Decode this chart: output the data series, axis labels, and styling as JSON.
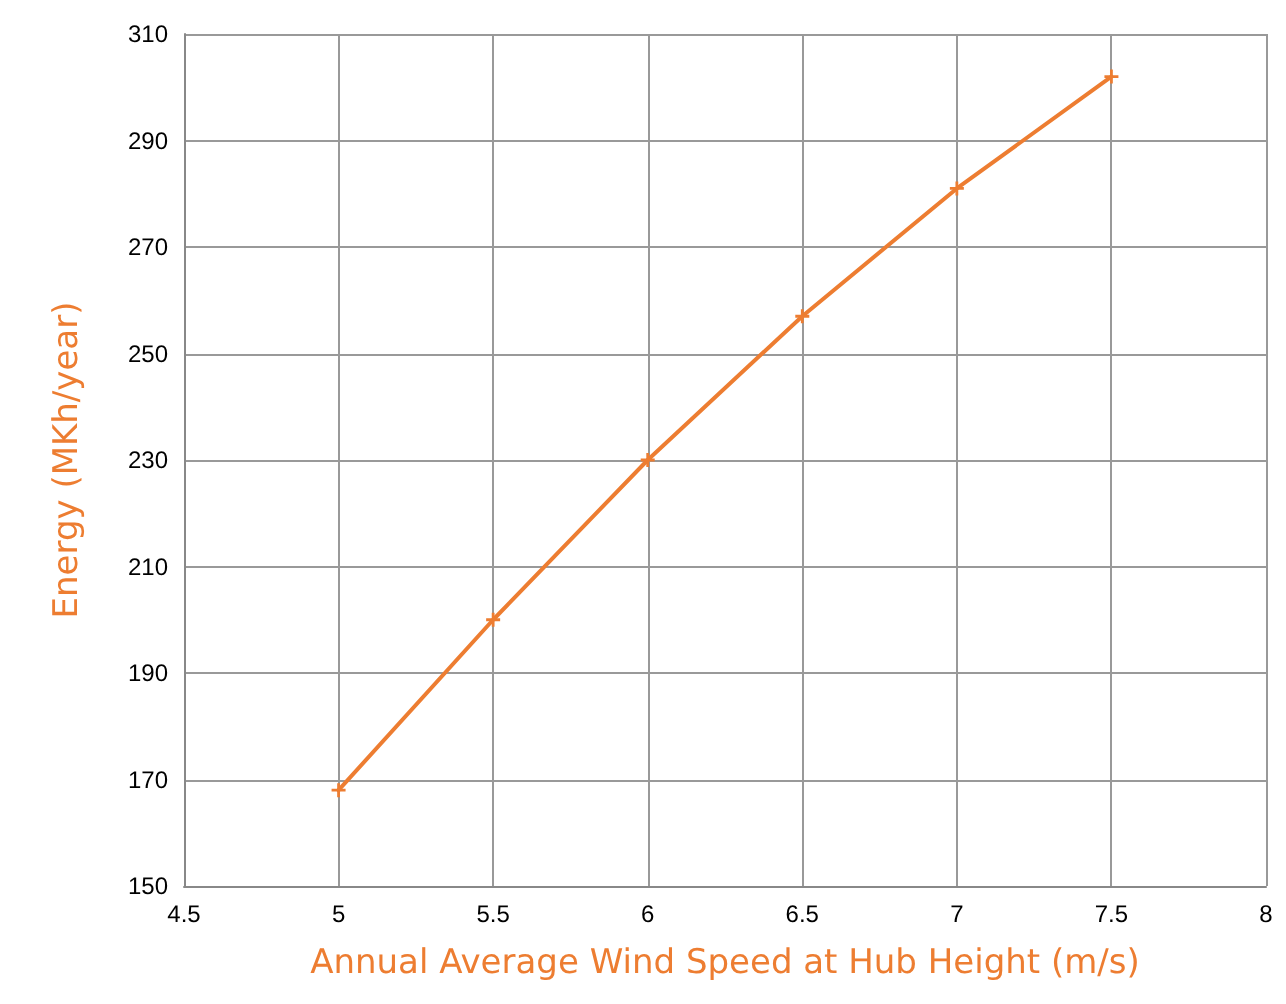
{
  "chart_data": {
    "type": "line",
    "xlabel": "Annual Average Wind Speed at Hub Height (m/s)",
    "ylabel": "Energy (MKh/year)",
    "x": [
      5,
      5.5,
      6,
      6.5,
      7,
      7.5
    ],
    "series": [
      {
        "color": "#ed7d31",
        "values": [
          168,
          200,
          230,
          257,
          281,
          302
        ]
      }
    ],
    "xlim": [
      4.5,
      8
    ],
    "xticks": [
      4.5,
      5,
      5.5,
      6,
      6.5,
      7,
      7.5,
      8
    ],
    "ylim": [
      150,
      310
    ],
    "yticks": [
      150,
      170,
      190,
      210,
      230,
      250,
      270,
      290,
      310
    ],
    "grid": true,
    "marker": "cross",
    "line_style": "solid"
  }
}
